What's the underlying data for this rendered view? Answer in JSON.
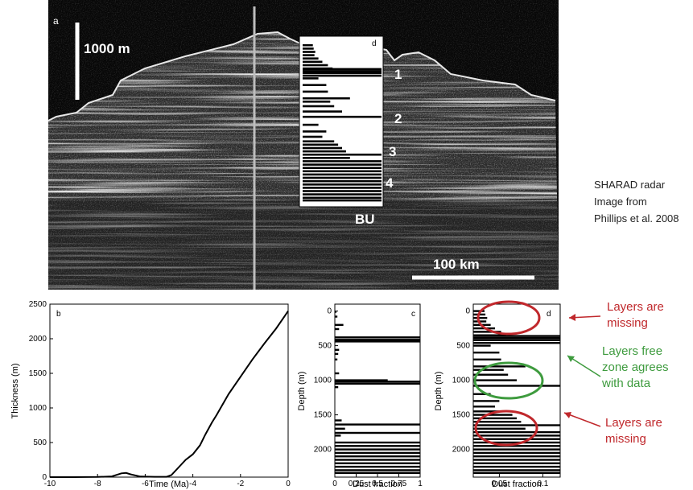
{
  "radar": {
    "panel_letter": "a",
    "inset_letter": "d",
    "scale_vertical": "1000 m",
    "scale_horizontal": "100 km",
    "layer_labels": [
      "1",
      "2",
      "3",
      "4"
    ],
    "bu_label": "BU",
    "caption_lines": [
      "SHARAD radar",
      "Image from",
      "Phillips et al. 2008"
    ]
  },
  "chart_data": [
    {
      "type": "line",
      "panel": "b",
      "xlabel": "Time (Ma)",
      "ylabel": "Thickness (m)",
      "xlim": [
        -10,
        0
      ],
      "ylim": [
        0,
        2500
      ],
      "xticks": [
        -10,
        -8,
        -6,
        -4,
        -2,
        0
      ],
      "yticks": [
        0,
        500,
        1000,
        1500,
        2000,
        2500
      ],
      "series": [
        {
          "x": [
            -10,
            -9,
            -8,
            -7.4,
            -7.0,
            -6.8,
            -6.6,
            -6.2,
            -5.6,
            -5.1,
            -4.9,
            -4.6,
            -4.3,
            -4.0,
            -3.7,
            -3.5,
            -3.2,
            -3.0,
            -2.5,
            -2.0,
            -1.5,
            -1.0,
            -0.5,
            -0.2,
            0
          ],
          "y": [
            0,
            0,
            2,
            10,
            55,
            60,
            40,
            8,
            5,
            5,
            30,
            140,
            250,
            330,
            460,
            600,
            790,
            900,
            1200,
            1450,
            1700,
            1930,
            2150,
            2300,
            2400
          ]
        }
      ]
    },
    {
      "type": "bar",
      "panel": "c",
      "orientation": "horizontal",
      "xlabel": "Dust fraction",
      "ylabel": "Depth (m)",
      "xlim": [
        0,
        1
      ],
      "ylim": [
        2400,
        -100
      ],
      "xticks": [
        "0",
        "0.25",
        "0.5",
        "0.75",
        "1"
      ],
      "yticks": [
        0,
        500,
        1000,
        1500,
        2000
      ],
      "depth": [
        10,
        80,
        200,
        260,
        380,
        415,
        440,
        560,
        620,
        700,
        900,
        1000,
        1020,
        1050,
        1100,
        1580,
        1640,
        1700,
        1760,
        1800,
        1900,
        1950,
        2000,
        2050,
        2100,
        2150,
        2200,
        2250,
        2300,
        2340
      ],
      "values": [
        0.02,
        0.03,
        0.1,
        0.05,
        1.0,
        1.0,
        1.0,
        0.05,
        0.04,
        0.03,
        0.05,
        0.62,
        1.0,
        1.0,
        0.04,
        0.08,
        1.0,
        0.12,
        1.0,
        0.07,
        1.0,
        1.0,
        1.0,
        1.0,
        1.0,
        1.0,
        1.0,
        1.0,
        1.0,
        1.0
      ]
    },
    {
      "type": "bar",
      "panel": "d",
      "orientation": "horizontal",
      "xlabel": "Dust fraction",
      "ylabel": "Depth (m)",
      "xlim": [
        0.02,
        0.12
      ],
      "ylim": [
        2400,
        -100
      ],
      "xticks": [
        "0.05",
        "0.1"
      ],
      "xtick_values": [
        0.05,
        0.1
      ],
      "yticks": [
        0,
        500,
        1000,
        1500,
        2000
      ],
      "depth": [
        0,
        50,
        100,
        150,
        200,
        250,
        300,
        350,
        360,
        390,
        420,
        460,
        500,
        600,
        700,
        800,
        850,
        920,
        1000,
        1080,
        1200,
        1300,
        1380,
        1450,
        1500,
        1550,
        1600,
        1650,
        1700,
        1750,
        1800,
        1850,
        1900,
        1950,
        2000,
        2050,
        2100,
        2150,
        2200,
        2250,
        2300,
        2340
      ],
      "values": [
        0.033,
        0.034,
        0.036,
        0.035,
        0.04,
        0.045,
        0.052,
        0.058,
        0.12,
        0.12,
        0.12,
        0.12,
        0.04,
        0.05,
        0.052,
        0.08,
        0.055,
        0.06,
        0.07,
        0.12,
        0.04,
        0.05,
        0.045,
        0.06,
        0.065,
        0.07,
        0.075,
        0.12,
        0.08,
        0.12,
        0.12,
        0.12,
        0.12,
        0.12,
        0.12,
        0.12,
        0.12,
        0.12,
        0.12,
        0.12,
        0.12,
        0.12
      ]
    }
  ],
  "annotations": [
    {
      "text_lines": [
        "Layers are",
        "missing"
      ],
      "color": "#c0282c"
    },
    {
      "text_lines": [
        "Layers free",
        "zone agrees",
        "with data"
      ],
      "color": "#3e9b3e"
    },
    {
      "text_lines": [
        "Layers are",
        "missing"
      ],
      "color": "#c0282c"
    }
  ]
}
